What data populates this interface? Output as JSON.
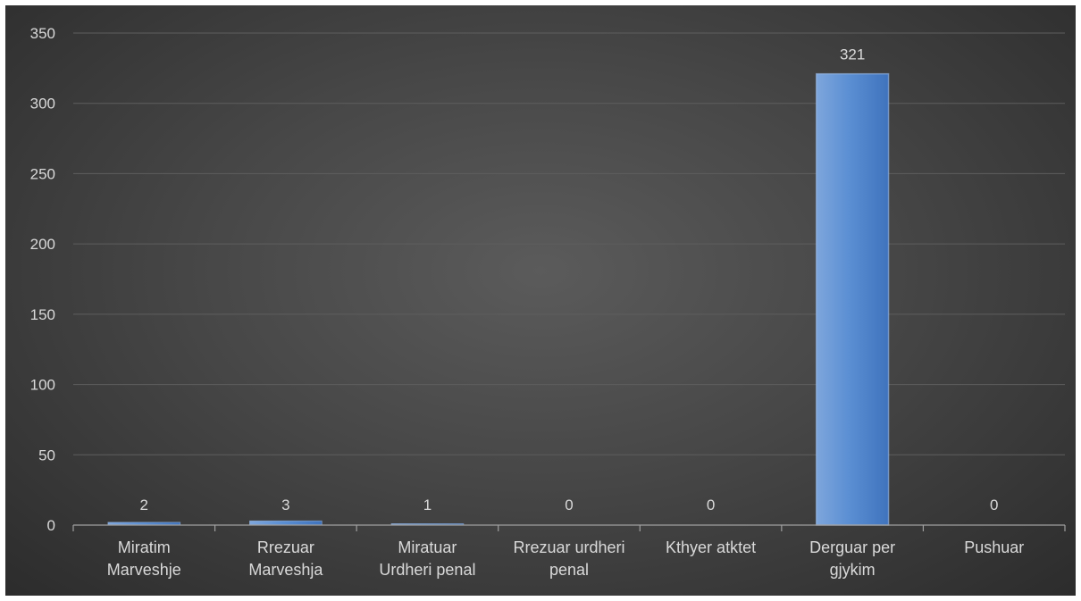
{
  "chart_data": {
    "type": "bar",
    "categories": [
      [
        "Miratim",
        "Marveshje"
      ],
      [
        "Rrezuar",
        "Marveshja"
      ],
      [
        "Miratuar",
        "Urdheri penal"
      ],
      [
        "Rrezuar urdheri",
        "penal"
      ],
      [
        "Kthyer atktet"
      ],
      [
        "Derguar per",
        "gjykim"
      ],
      [
        "Pushuar"
      ]
    ],
    "values": [
      2,
      3,
      1,
      0,
      0,
      321,
      0
    ],
    "data_labels": [
      "2",
      "3",
      "1",
      "0",
      "0",
      "321",
      "0"
    ],
    "ylim": [
      0,
      350
    ],
    "yticks": [
      "0",
      "50",
      "100",
      "150",
      "200",
      "250",
      "300",
      "350"
    ],
    "grid": true,
    "legend": "none",
    "colors": {
      "bar_light": "#7ea6dc",
      "bar_mid": "#5b8fd3",
      "bar_dark": "#3f73bd",
      "gridline": "#5e5e5e",
      "axis": "#a0a0a0",
      "text": "#d9d9d9"
    }
  }
}
